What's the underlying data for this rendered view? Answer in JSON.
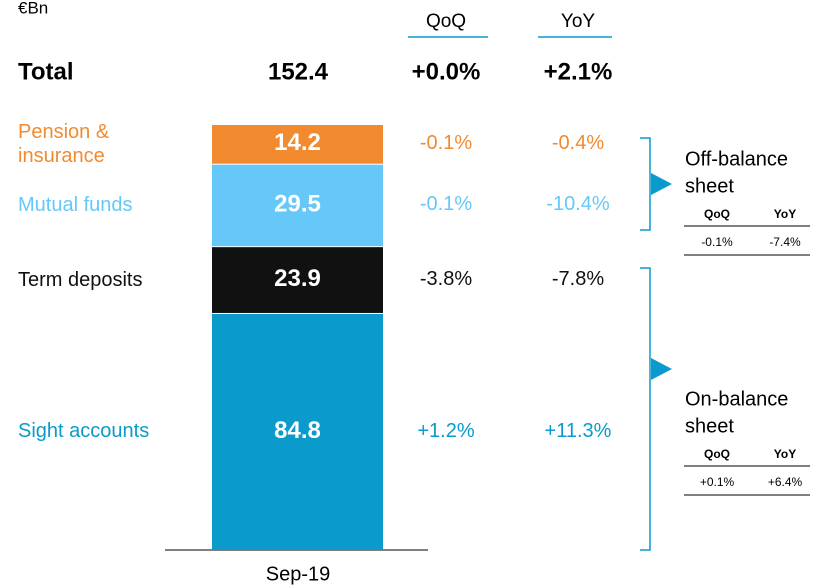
{
  "unit": "€Bn",
  "columns": [
    "QoQ",
    "YoY"
  ],
  "total": {
    "label": "Total",
    "value": 152.4,
    "qoq": "+0.0%",
    "yoy": "+2.1%"
  },
  "chart_data": {
    "type": "bar",
    "stacked": true,
    "categories": [
      "Sep-19"
    ],
    "series": [
      {
        "name": "Sight accounts",
        "color": "#0a9bcc",
        "label_color": "#0a9bcc",
        "values": [
          84.8
        ],
        "qoq": "+1.2%",
        "yoy": "+11.3%"
      },
      {
        "name": "Term deposits",
        "color": "#111111",
        "label_color": "#111111",
        "values": [
          23.9
        ],
        "qoq": "-3.8%",
        "yoy": "-7.8%"
      },
      {
        "name": "Mutual funds",
        "color": "#66c8f8",
        "label_color": "#66c8f8",
        "values": [
          29.5
        ],
        "qoq": "-0.1%",
        "yoy": "-10.4%"
      },
      {
        "name": "Pension & insurance",
        "color": "#f28a30",
        "label_color": "#f28a30",
        "values": [
          14.2
        ],
        "qoq": "-0.1%",
        "yoy": "-0.4%"
      }
    ]
  },
  "groups": [
    {
      "title": "Off-balance sheet",
      "title_lines": [
        "Off-balance",
        "sheet"
      ],
      "header": [
        "QoQ",
        "YoY"
      ],
      "qoq": "-0.1%",
      "yoy": "-7.4%"
    },
    {
      "title": "On-balance sheet",
      "title_lines": [
        "On-balance",
        "sheet"
      ],
      "header": [
        "QoQ",
        "YoY"
      ],
      "qoq": "+0.1%",
      "yoy": "+6.4%"
    }
  ]
}
